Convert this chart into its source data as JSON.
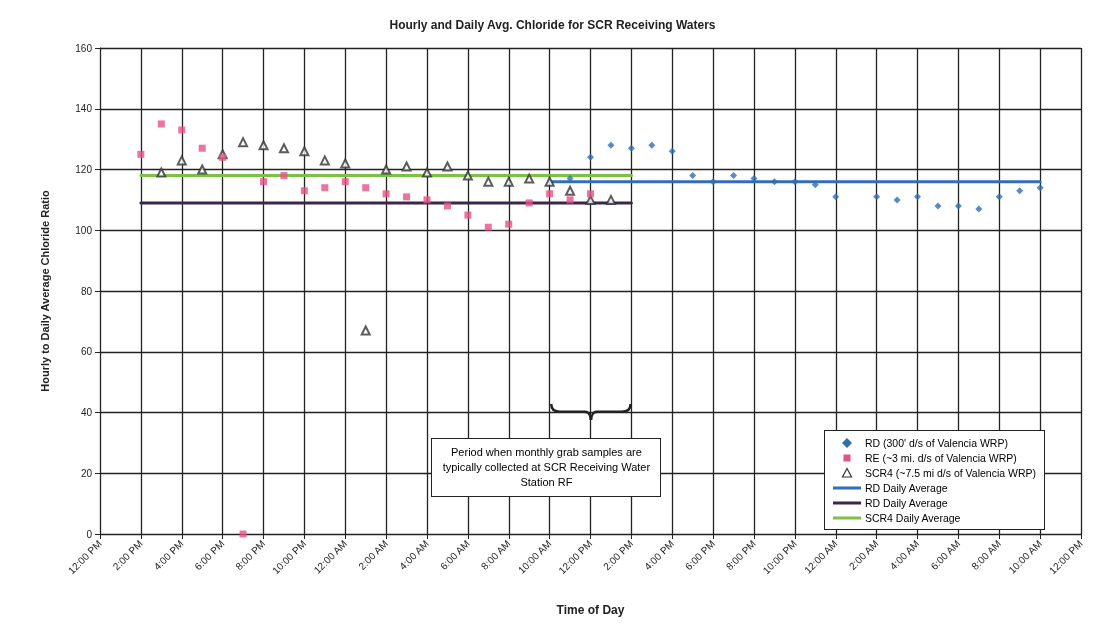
{
  "chart_data": {
    "type": "scatter",
    "title": "Hourly and Daily Avg. Chloride for SCR Receiving Waters",
    "xlabel": "Time of Day",
    "ylabel": "Hourly to Daily Average Chloride Ratio",
    "categories": [
      "12:00 PM",
      null,
      "2:00 PM",
      null,
      "4:00 PM",
      null,
      "6:00 PM",
      null,
      "8:00 PM",
      null,
      "10:00 PM",
      null,
      "12:00 AM",
      null,
      "2:00 AM",
      null,
      "4:00 AM",
      null,
      "6:00 AM",
      null,
      "8:00 AM",
      null,
      "10:00 AM",
      null,
      "12:00 PM",
      null,
      "2:00 PM",
      null,
      "4:00 PM",
      null,
      "6:00 PM",
      null,
      "8:00 PM",
      null,
      "10:00 PM",
      null,
      "12:00 AM",
      null,
      "2:00 AM",
      null,
      "4:00 AM",
      null,
      "6:00 AM",
      null,
      "8:00 AM",
      null,
      "10:00 AM",
      null,
      "12:00 PM"
    ],
    "ylim": [
      0,
      160
    ],
    "yticks": [
      0,
      20,
      40,
      60,
      80,
      100,
      120,
      140,
      160
    ],
    "grid": true,
    "legend": "bottom right",
    "series": [
      {
        "name": "RD (300' d/s of Valencia WRP)",
        "marker": "diamond",
        "color": "#2e6db4",
        "values": [
          null,
          null,
          null,
          null,
          null,
          null,
          null,
          null,
          null,
          null,
          null,
          null,
          null,
          null,
          null,
          null,
          null,
          null,
          null,
          null,
          null,
          null,
          null,
          117,
          124,
          128,
          127,
          128,
          126,
          118,
          116,
          118,
          117,
          116,
          116,
          115,
          111,
          null,
          111,
          110,
          111,
          108,
          108,
          107,
          111,
          113,
          114,
          null,
          null
        ]
      },
      {
        "name": "RE (~3 mi. d/s of Valencia WRP)",
        "marker": "square",
        "color": "#e8508a",
        "values": [
          null,
          null,
          125,
          135,
          133,
          127,
          124,
          0,
          116,
          118,
          113,
          114,
          116,
          114,
          112,
          111,
          110,
          108,
          105,
          101,
          102,
          109,
          112,
          110,
          112,
          null,
          null,
          null,
          null,
          null,
          null,
          null,
          null,
          null,
          null,
          null,
          null,
          null,
          null,
          null,
          null,
          null,
          null,
          null,
          null,
          null,
          null,
          null,
          null
        ]
      },
      {
        "name": "SCR4 (~7.5 mi d/s of Valencia WRP)",
        "marker": "triangle",
        "color": "#333333",
        "values": [
          null,
          null,
          null,
          119,
          123,
          120,
          125,
          129,
          128,
          127,
          126,
          123,
          122,
          67,
          120,
          121,
          119,
          121,
          118,
          116,
          116,
          117,
          116,
          113,
          110,
          110,
          null,
          null,
          null,
          null,
          null,
          null,
          null,
          null,
          null,
          null,
          null,
          null,
          null,
          null,
          null,
          null,
          null,
          null,
          null,
          null,
          null,
          null,
          null
        ]
      },
      {
        "name": "RD Daily Average",
        "type": "line",
        "marker": "none",
        "color": "#2f6fb8",
        "values": [
          null,
          null,
          null,
          null,
          null,
          null,
          null,
          null,
          null,
          null,
          null,
          null,
          null,
          null,
          null,
          null,
          null,
          null,
          null,
          null,
          null,
          null,
          116,
          116,
          116,
          116,
          116,
          116,
          116,
          116,
          116,
          116,
          116,
          116,
          116,
          116,
          116,
          116,
          116,
          116,
          116,
          116,
          116,
          116,
          116,
          116,
          116,
          null,
          null
        ]
      },
      {
        "name": "RD Daily Average",
        "type": "line",
        "marker": "none",
        "color": "#3b2748",
        "values": [
          null,
          null,
          109,
          109,
          109,
          109,
          109,
          109,
          109,
          109,
          109,
          109,
          109,
          109,
          109,
          109,
          109,
          109,
          109,
          109,
          109,
          109,
          109,
          109,
          109,
          109,
          109,
          null,
          null,
          null,
          null,
          null,
          null,
          null,
          null,
          null,
          null,
          null,
          null,
          null,
          null,
          null,
          null,
          null,
          null,
          null,
          null,
          null,
          null
        ]
      },
      {
        "name": "SCR4 Daily Average",
        "type": "line",
        "marker": "none",
        "color": "#7cc242",
        "values": [
          null,
          null,
          118,
          118,
          118,
          118,
          118,
          118,
          118,
          118,
          118,
          118,
          118,
          118,
          118,
          118,
          118,
          118,
          118,
          118,
          118,
          118,
          118,
          118,
          118,
          118,
          118,
          null,
          null,
          null,
          null,
          null,
          null,
          null,
          null,
          null,
          null,
          null,
          null,
          null,
          null,
          null,
          null,
          null,
          null,
          null,
          null,
          null,
          null
        ]
      }
    ],
    "annotations": [
      "Period when monthly grab samples are typically collected at SCR Receiving Water Station RF"
    ]
  }
}
